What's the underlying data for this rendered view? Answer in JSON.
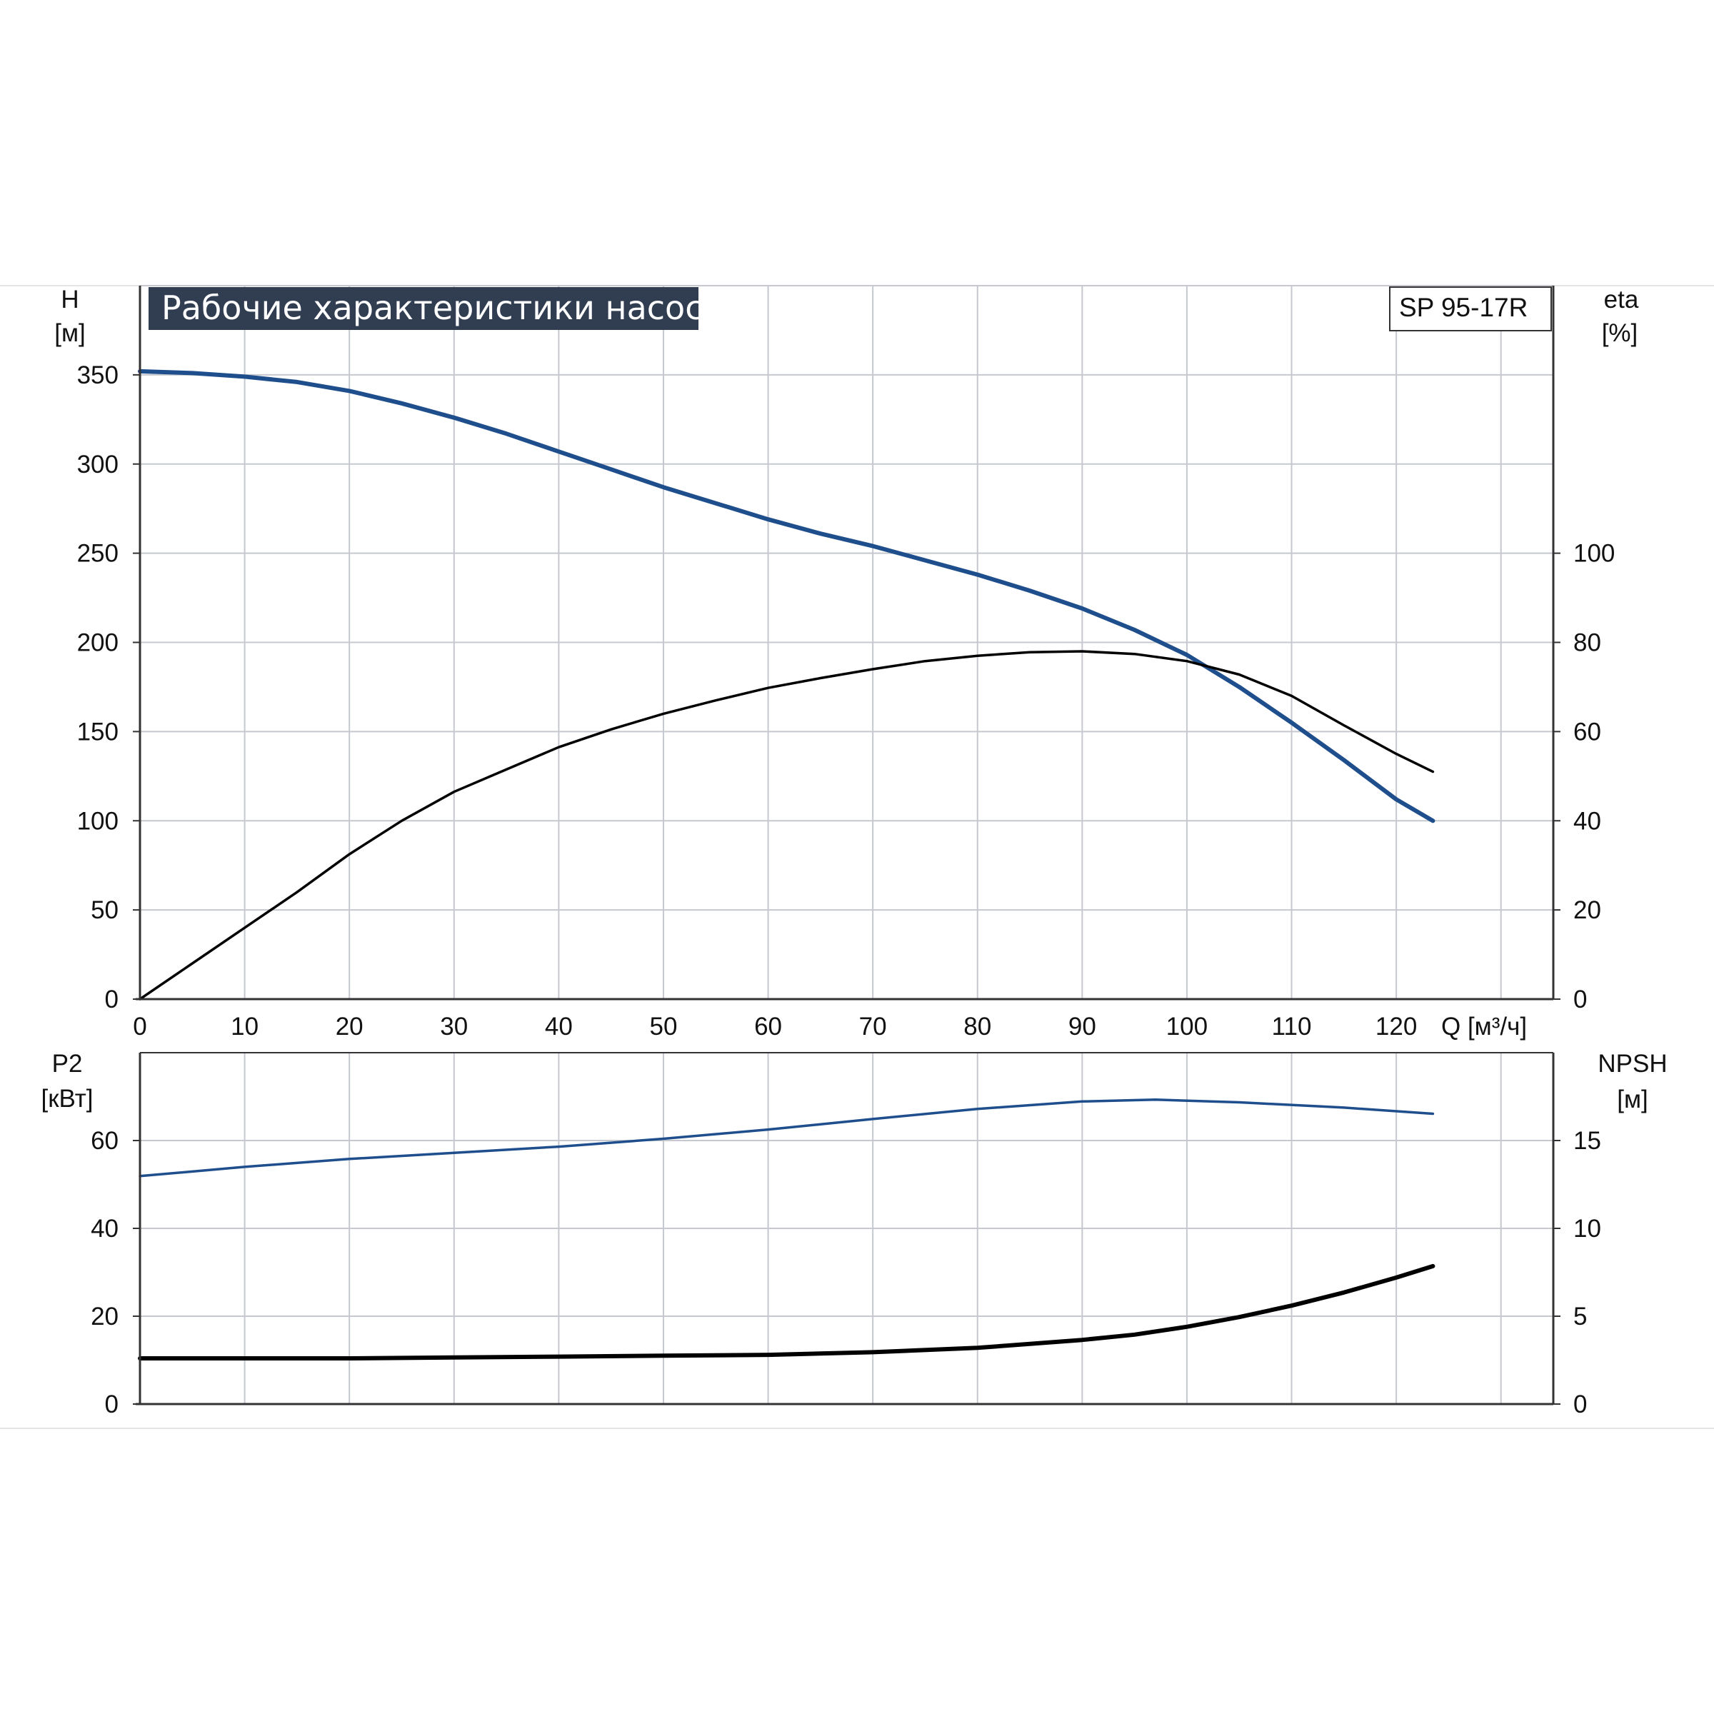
{
  "title": "Рабочие характеристики насоса",
  "model": "SP 95-17R",
  "colors": {
    "grid": "#c5c8ce",
    "axis": "#333333",
    "blue": "#1f4e8c",
    "black": "#000000",
    "title_bg": "#313d50",
    "divider": "#e2e4e8"
  },
  "chart_data": [
    {
      "type": "line",
      "panel": "top",
      "title": "Рабочие характеристики насоса",
      "xlabel": "Q [м³/ч]",
      "x_ticks": [
        "0",
        "10",
        "20",
        "30",
        "40",
        "50",
        "60",
        "70",
        "80",
        "90",
        "100",
        "110",
        "120"
      ],
      "xlim": [
        0,
        135
      ],
      "left_axis": {
        "label_line1": "H",
        "label_line2": "[м]",
        "ylim": [
          0,
          400
        ],
        "ticks": [
          "0",
          "50",
          "100",
          "150",
          "200",
          "250",
          "300",
          "350"
        ]
      },
      "right_axis": {
        "label_line1": "eta",
        "label_line2": "[%]",
        "ylim": [
          0,
          160
        ],
        "ticks": [
          "0",
          "20",
          "40",
          "60",
          "80",
          "100"
        ]
      },
      "grid": true,
      "series": [
        {
          "axis": "left",
          "color": "#1f4e8c",
          "x": [
            0,
            5,
            10,
            15,
            20,
            25,
            30,
            35,
            40,
            45,
            50,
            55,
            60,
            65,
            70,
            75,
            80,
            85,
            90,
            95,
            100,
            105,
            110,
            115,
            120,
            123.5
          ],
          "y": [
            352,
            351,
            349,
            346,
            341,
            334,
            326,
            317,
            307,
            297,
            287,
            278,
            269,
            261,
            254,
            246,
            238,
            229,
            219,
            207,
            193,
            175,
            155,
            134,
            112,
            100
          ]
        },
        {
          "axis": "right",
          "color": "#000000",
          "x": [
            0,
            5,
            10,
            15,
            20,
            25,
            30,
            35,
            40,
            45,
            50,
            55,
            60,
            65,
            70,
            75,
            80,
            85,
            90,
            95,
            100,
            105,
            110,
            115,
            120,
            123.5
          ],
          "y": [
            0,
            8,
            16,
            24,
            32.5,
            40,
            46.5,
            51.5,
            56.5,
            60.5,
            64,
            67,
            69.8,
            72,
            74,
            75.8,
            77,
            77.8,
            78,
            77.4,
            75.8,
            72.8,
            68,
            61.4,
            55,
            51
          ]
        }
      ]
    },
    {
      "type": "line",
      "panel": "bottom",
      "xlim": [
        0,
        135
      ],
      "left_axis": {
        "label_line1": "P2",
        "label_line2": "[кВт]",
        "ylim": [
          0,
          80
        ],
        "ticks": [
          "0",
          "20",
          "40",
          "60"
        ]
      },
      "right_axis": {
        "label_line1": "NPSH",
        "label_line2": "[м]",
        "ylim": [
          0,
          20
        ],
        "ticks": [
          "0",
          "5",
          "10",
          "15"
        ]
      },
      "grid": true,
      "series": [
        {
          "axis": "left",
          "color": "#1f4e8c",
          "x": [
            0,
            10,
            20,
            30,
            40,
            50,
            60,
            70,
            80,
            90,
            97,
            105,
            115,
            123.5
          ],
          "y": [
            51.9,
            54,
            55.8,
            57.2,
            58.6,
            60.4,
            62.5,
            64.9,
            67.2,
            68.9,
            69.3,
            68.7,
            67.5,
            66.1
          ]
        },
        {
          "axis": "right",
          "color": "#000000",
          "x": [
            0,
            10,
            20,
            30,
            40,
            50,
            60,
            70,
            80,
            90,
            95,
            100,
            105,
            110,
            115,
            120,
            123.5
          ],
          "y": [
            2.6,
            2.6,
            2.6,
            2.65,
            2.7,
            2.75,
            2.8,
            2.95,
            3.2,
            3.65,
            3.95,
            4.4,
            4.95,
            5.6,
            6.35,
            7.2,
            7.85
          ]
        }
      ]
    }
  ]
}
